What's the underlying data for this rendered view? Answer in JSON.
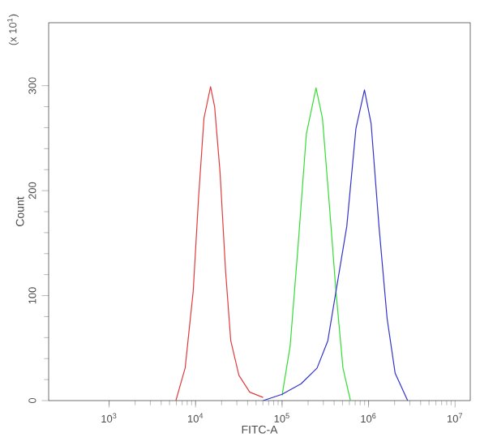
{
  "chart_data": {
    "type": "line",
    "xlabel": "FITC-A",
    "ylabel": "Count",
    "annotations": [
      "(x 10$^{1}$)"
    ],
    "log": "x",
    "xlim": [
      200,
      15000000
    ],
    "ylim": [
      0,
      360
    ],
    "xticks": [
      {
        "value": 1000,
        "label": "10$^{3}$"
      },
      {
        "value": 10000,
        "label": "10$^{4}$"
      },
      {
        "value": 100000,
        "label": "10$^{5}$"
      },
      {
        "value": 1000000,
        "label": "10$^{6}$"
      },
      {
        "value": 10000000,
        "label": "10$^{7}$"
      }
    ],
    "yticks": [
      0,
      100,
      200,
      300
    ],
    "grid": false,
    "marker": "none",
    "line_style": "solid",
    "series": [
      {
        "color": "#e03c3c",
        "x": [
          5920,
          7570,
          9380,
          10800,
          12500,
          14900,
          16600,
          19200,
          22200,
          25500,
          31700,
          42300,
          60400
        ],
        "values": [
          0,
          31,
          104,
          192,
          269,
          299,
          280,
          217,
          124,
          57,
          24,
          8,
          3
        ]
      },
      {
        "color": "#33dd33",
        "x": [
          100000,
          124000,
          154000,
          191000,
          247000,
          293000,
          348000,
          420000,
          506000,
          617000
        ],
        "values": [
          5,
          52,
          150,
          254,
          298,
          269,
          192,
          104,
          31,
          0
        ]
      },
      {
        "color": "#3333cc",
        "x": [
          60400,
          100000,
          166000,
          254000,
          338000,
          420000,
          560000,
          714000,
          897000,
          1070000,
          1320000,
          1640000,
          2030000,
          2830000
        ],
        "values": [
          0,
          6,
          16,
          31,
          57,
          104,
          166,
          259,
          296,
          264,
          166,
          78,
          26,
          0
        ]
      }
    ]
  }
}
